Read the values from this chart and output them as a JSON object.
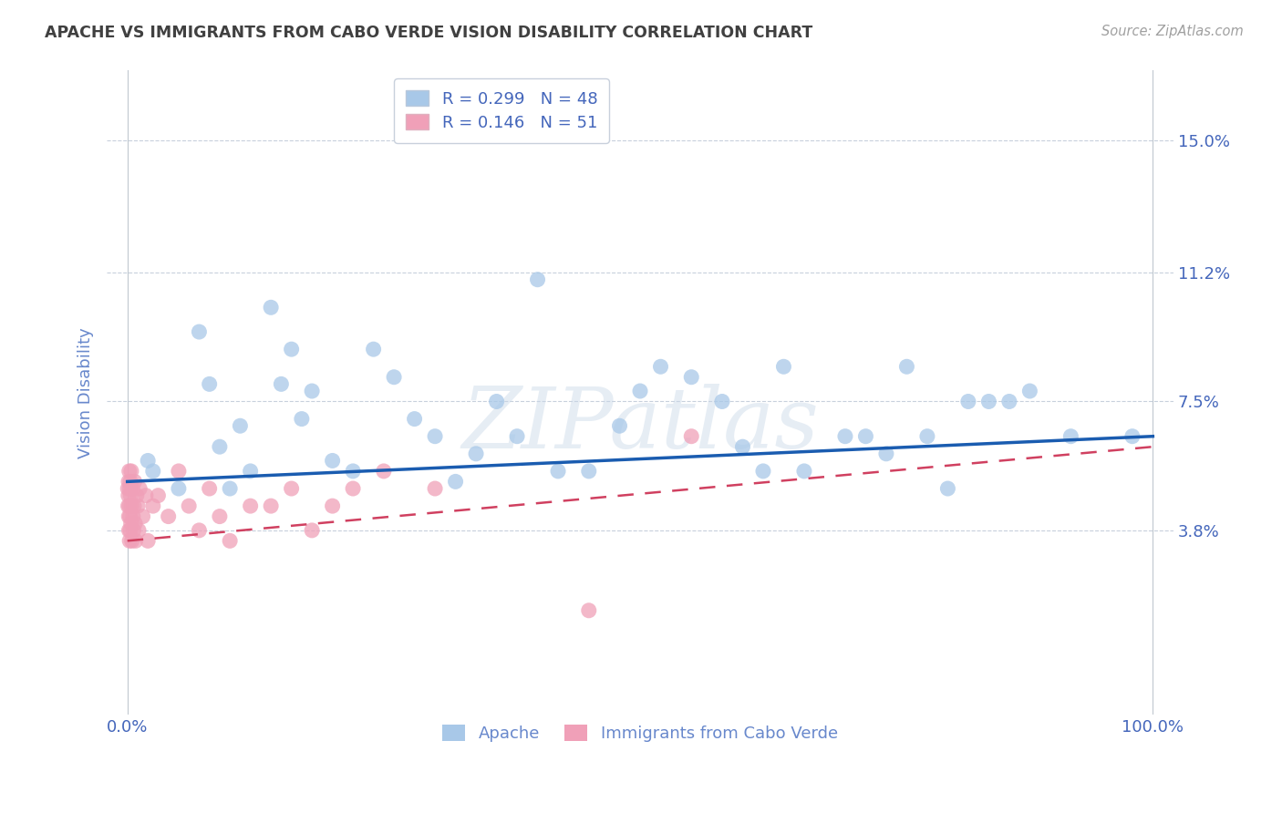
{
  "title": "APACHE VS IMMIGRANTS FROM CABO VERDE VISION DISABILITY CORRELATION CHART",
  "source": "Source: ZipAtlas.com",
  "ylabel": "Vision Disability",
  "watermark": "ZIPatlas",
  "legend_apache": "Apache",
  "legend_cabo": "Immigrants from Cabo Verde",
  "R_apache": 0.299,
  "N_apache": 48,
  "R_cabo": 0.146,
  "N_cabo": 51,
  "xlim": [
    -2.0,
    102.0
  ],
  "ylim": [
    -1.5,
    17.0
  ],
  "yticks": [
    3.8,
    7.5,
    11.2,
    15.0
  ],
  "ytick_labels": [
    "3.8%",
    "7.5%",
    "11.2%",
    "15.0%"
  ],
  "xtick_labels": [
    "0.0%",
    "100.0%"
  ],
  "xticks": [
    0.0,
    100.0
  ],
  "color_apache": "#a8c8e8",
  "color_cabo": "#f0a0b8",
  "line_color_apache": "#1a5cb0",
  "line_color_cabo": "#d04060",
  "background_color": "#ffffff",
  "title_color": "#404040",
  "axis_label_color": "#6888cc",
  "tick_label_color": "#4466bb",
  "source_color": "#a0a0a0",
  "apache_x": [
    2.0,
    2.5,
    5.0,
    7.0,
    8.0,
    9.0,
    10.0,
    11.0,
    12.0,
    14.0,
    15.0,
    16.0,
    17.0,
    18.0,
    20.0,
    22.0,
    24.0,
    26.0,
    28.0,
    30.0,
    32.0,
    34.0,
    36.0,
    38.0,
    40.0,
    42.0,
    45.0,
    48.0,
    50.0,
    52.0,
    55.0,
    58.0,
    60.0,
    62.0,
    64.0,
    66.0,
    70.0,
    72.0,
    74.0,
    76.0,
    78.0,
    80.0,
    82.0,
    84.0,
    86.0,
    88.0,
    92.0,
    98.0
  ],
  "apache_y": [
    5.8,
    5.5,
    5.0,
    9.5,
    8.0,
    6.2,
    5.0,
    6.8,
    5.5,
    10.2,
    8.0,
    9.0,
    7.0,
    7.8,
    5.8,
    5.5,
    9.0,
    8.2,
    7.0,
    6.5,
    5.2,
    6.0,
    7.5,
    6.5,
    11.0,
    5.5,
    5.5,
    6.8,
    7.8,
    8.5,
    8.2,
    7.5,
    6.2,
    5.5,
    8.5,
    5.5,
    6.5,
    6.5,
    6.0,
    8.5,
    6.5,
    5.0,
    7.5,
    7.5,
    7.5,
    7.8,
    6.5,
    6.5
  ],
  "cabo_x": [
    0.05,
    0.08,
    0.1,
    0.12,
    0.14,
    0.16,
    0.18,
    0.2,
    0.22,
    0.24,
    0.26,
    0.28,
    0.3,
    0.32,
    0.35,
    0.38,
    0.4,
    0.45,
    0.5,
    0.55,
    0.6,
    0.65,
    0.7,
    0.75,
    0.8,
    0.9,
    1.0,
    1.1,
    1.2,
    1.5,
    1.8,
    2.0,
    2.5,
    3.0,
    4.0,
    5.0,
    6.0,
    7.0,
    8.0,
    9.0,
    10.0,
    12.0,
    14.0,
    16.0,
    18.0,
    20.0,
    22.0,
    25.0,
    30.0,
    45.0,
    55.0
  ],
  "cabo_y": [
    5.0,
    4.5,
    4.8,
    5.2,
    4.2,
    3.8,
    5.5,
    4.5,
    3.5,
    5.0,
    4.2,
    3.8,
    5.2,
    4.8,
    4.0,
    5.5,
    4.5,
    3.5,
    5.0,
    4.2,
    3.8,
    4.5,
    5.2,
    4.0,
    3.5,
    4.8,
    4.5,
    3.8,
    5.0,
    4.2,
    4.8,
    3.5,
    4.5,
    4.8,
    4.2,
    5.5,
    4.5,
    3.8,
    5.0,
    4.2,
    3.5,
    4.5,
    4.5,
    5.0,
    3.8,
    4.5,
    5.0,
    5.5,
    5.0,
    1.5,
    6.5
  ],
  "line_apache_x0": 0,
  "line_apache_y0": 5.2,
  "line_apache_x1": 100,
  "line_apache_y1": 6.5,
  "line_cabo_x0": 0,
  "line_cabo_y0": 3.5,
  "line_cabo_x1": 100,
  "line_cabo_y1": 6.2
}
